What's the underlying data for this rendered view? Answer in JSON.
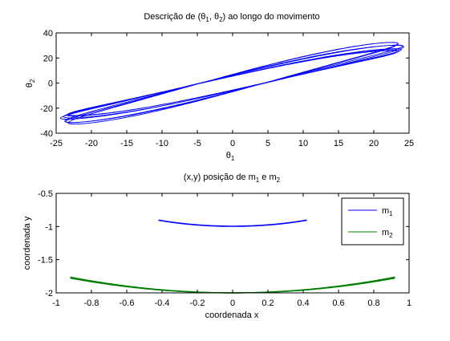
{
  "chart_data": [
    {
      "type": "line",
      "title": "Descrição de (θ1, θ2) ao longo do movimento",
      "title_parts": [
        "Descrição de (θ",
        "1",
        ", θ",
        "2",
        ") ao longo do movimento"
      ],
      "xlabel": "θ1",
      "ylabel": "θ2",
      "xlim": [
        -25,
        25
      ],
      "ylim": [
        -40,
        40
      ],
      "xticks": [
        -25,
        -20,
        -15,
        -10,
        -5,
        0,
        5,
        10,
        15,
        20,
        25
      ],
      "yticks": [
        -40,
        -20,
        0,
        20,
        40
      ],
      "grid": false,
      "line_color": "#0000ff",
      "series": [
        {
          "note_values": "theta1 vs theta2 trace: closed quasi-periodic loops spanning approx theta1 -25..25 and theta2 -33..34",
          "x_amplitude": 24.5,
          "y_amplitude": 30,
          "y_phase_lag_deg": 12,
          "x_beat_amplitude": 1.2,
          "y_beat_amplitude": 3.5,
          "beat_ratio": 7.3,
          "cycles": 7
        }
      ]
    },
    {
      "type": "line",
      "title": "(x,y) posição de m1 e m2",
      "title_parts": [
        "(x,y) posição de m",
        "1",
        " e m",
        "2"
      ],
      "xlabel": "coordenada x",
      "ylabel": "coordenada y",
      "xlim": [
        -1,
        1
      ],
      "ylim": [
        -2,
        -0.5
      ],
      "xticks": [
        -1,
        -0.8,
        -0.6,
        -0.4,
        -0.2,
        0,
        0.2,
        0.4,
        0.6,
        0.8,
        1
      ],
      "yticks": [
        -2,
        -1.5,
        -1,
        -0.5
      ],
      "grid": false,
      "legend_position": "top-right",
      "series": [
        {
          "name": "m1",
          "color": "#0000ff",
          "x_range": [
            -0.42,
            0.42
          ],
          "rod_length": 1.0
        },
        {
          "name": "m2",
          "color": "#008000",
          "x_range": [
            -0.92,
            0.92
          ],
          "y_at_center": -2.0,
          "y_at_edges": -1.77
        }
      ]
    }
  ]
}
